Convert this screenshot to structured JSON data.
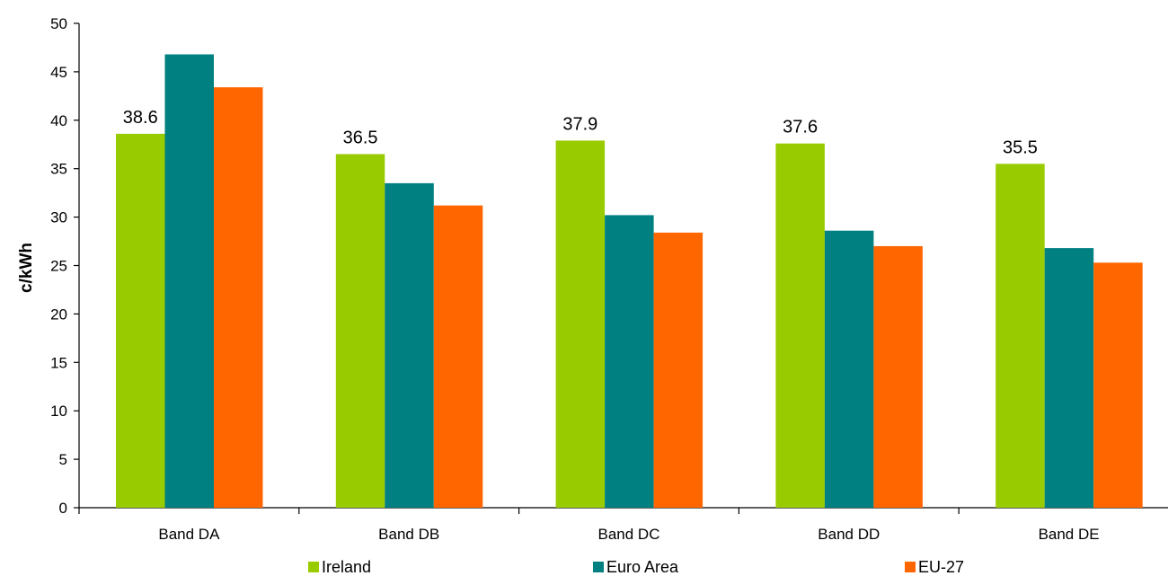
{
  "chart_data": {
    "type": "bar",
    "categories": [
      "Band DA",
      "Band DB",
      "Band DC",
      "Band DD",
      "Band DE"
    ],
    "series": [
      {
        "name": "Ireland",
        "color": "#99cc00",
        "values": [
          38.6,
          36.5,
          37.9,
          37.6,
          35.5
        ],
        "labels": [
          "38.6",
          "36.5",
          "37.9",
          "37.6",
          "35.5"
        ]
      },
      {
        "name": "Euro Area",
        "color": "#008080",
        "values": [
          46.8,
          33.5,
          30.2,
          28.6,
          26.8
        ]
      },
      {
        "name": "EU-27",
        "color": "#ff6600",
        "values": [
          43.4,
          31.2,
          28.4,
          27.0,
          25.3
        ]
      }
    ],
    "ylabel": "c/kWh",
    "xlabel": "",
    "ylim": [
      0,
      50
    ],
    "yticks": [
      "0",
      "5",
      "10",
      "15",
      "20",
      "25",
      "30",
      "35",
      "40",
      "45",
      "50"
    ],
    "grid": false,
    "legend": "bottom"
  }
}
